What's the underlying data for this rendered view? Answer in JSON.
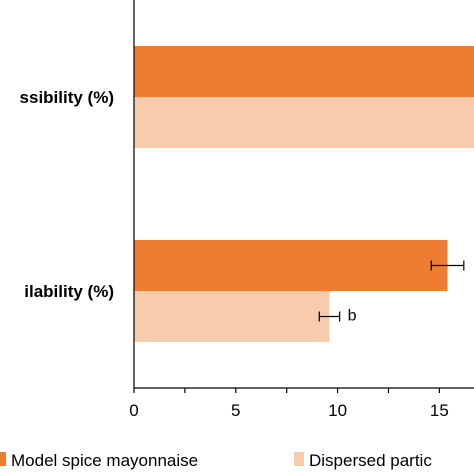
{
  "chart_data": {
    "type": "bar",
    "orientation": "horizontal",
    "categories": [
      "ssibility (%)",
      "ilability (%)"
    ],
    "series": [
      {
        "name": "Model spice mayonnaise",
        "color": "#ED7D31",
        "values": [
          17.5,
          15.4
        ],
        "error": [
          null,
          0.8
        ],
        "labels": [
          "",
          ""
        ]
      },
      {
        "name": "Dispersed partic",
        "color": "#F8CBAD",
        "values": [
          17.5,
          9.6
        ],
        "error": [
          null,
          0.5
        ],
        "labels": [
          "",
          "b"
        ]
      }
    ],
    "xlim": [
      0,
      16.7
    ],
    "xticks": [
      "0",
      "5",
      "10",
      "15"
    ],
    "xtick_values": [
      0,
      5,
      10,
      15
    ],
    "grid": false,
    "legend_position": "bottom"
  }
}
